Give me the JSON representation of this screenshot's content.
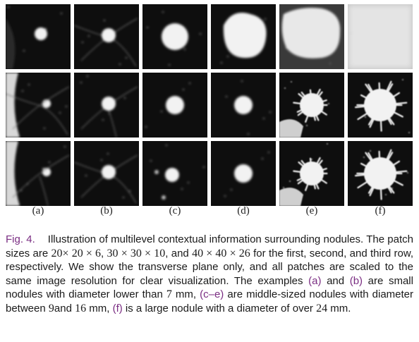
{
  "figure": {
    "columns": [
      "(a)",
      "(b)",
      "(c)",
      "(d)",
      "(e)",
      "(f)"
    ],
    "rows": 3,
    "patches": [
      [
        {
          "nodule": "small-blob",
          "level": 0.55,
          "bg": "dark-lung"
        },
        {
          "nodule": "small-blob-vessels",
          "level": 0.7,
          "bg": "dark-lung"
        },
        {
          "nodule": "round",
          "level": 0.85,
          "bg": "dark-lung"
        },
        {
          "nodule": "large-round",
          "level": 0.9,
          "bg": "dark-lung"
        },
        {
          "nodule": "very-large",
          "level": 0.92,
          "bg": "gray"
        },
        {
          "nodule": "fill",
          "level": 0.88,
          "bg": "light"
        }
      ],
      [
        {
          "nodule": "small-wall",
          "level": 0.5,
          "bg": "dark-lung"
        },
        {
          "nodule": "small-blob-vessels",
          "level": 0.75,
          "bg": "dark-lung"
        },
        {
          "nodule": "round",
          "level": 0.85,
          "bg": "dark-lung"
        },
        {
          "nodule": "round",
          "level": 0.9,
          "bg": "dark-lung"
        },
        {
          "nodule": "spiculated",
          "level": 0.9,
          "bg": "dark-lung"
        },
        {
          "nodule": "spiculated-large",
          "level": 0.92,
          "bg": "dark-lung"
        }
      ],
      [
        {
          "nodule": "small-wall",
          "level": 0.5,
          "bg": "dark-lung"
        },
        {
          "nodule": "small-blob-vessels",
          "level": 0.75,
          "bg": "dark-lung"
        },
        {
          "nodule": "round-small",
          "level": 0.85,
          "bg": "dark-lung"
        },
        {
          "nodule": "round",
          "level": 0.9,
          "bg": "dark-lung"
        },
        {
          "nodule": "spiculated",
          "level": 0.9,
          "bg": "dark-lung"
        },
        {
          "nodule": "spiculated-large",
          "level": 0.92,
          "bg": "dark-lung"
        }
      ]
    ]
  },
  "caption": {
    "fig_label": "Fig. 4.",
    "p1": "Illustration of multilevel contextual information surrounding nodules. The patch sizes are ",
    "s1": "20× 20 × 6",
    "p2": ", ",
    "s2": "30 × 30 × 10",
    "p3": ", and ",
    "s3": "40 × 40 × 26",
    "p4": " for the first, second, and third row, respectively. We show the transverse plane only, and all patches are scaled to the same image resolution for clear visualization. The examples ",
    "ref_a": "(a)",
    "p5": " and ",
    "ref_b": "(b)",
    "p6": " are small nodules with diameter lower than ",
    "s4": "7",
    "p7": " mm, ",
    "ref_ce": "(c–e)",
    "p8": " are middle-sized nodules with diameter between ",
    "s5": "9",
    "p9": "and ",
    "s6": "16",
    "p10": " mm, ",
    "ref_f": "(f)",
    "p11": " is a large nodule with a diameter of over ",
    "s7": "24",
    "p12": " mm."
  }
}
